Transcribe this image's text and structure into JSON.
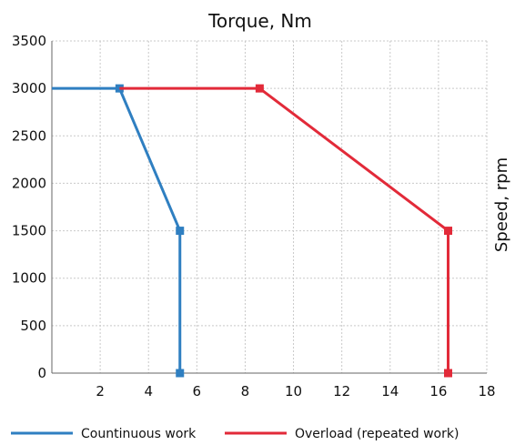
{
  "chart_data": {
    "type": "line",
    "title": "Torque, Nm",
    "xlabel": "",
    "ylabel": "Speed, rpm",
    "xlim": [
      0,
      18
    ],
    "ylim": [
      0,
      3500
    ],
    "x_ticks": [
      2,
      4,
      6,
      8,
      10,
      12,
      14,
      16,
      18
    ],
    "y_ticks": [
      0,
      500,
      1000,
      1500,
      2000,
      2500,
      3000,
      3500
    ],
    "grid": true,
    "legend_position": "bottom",
    "series": [
      {
        "name": "Countinuous work",
        "color": "#2f7fc1",
        "points": [
          {
            "x": 0,
            "y": 3000
          },
          {
            "x": 2.8,
            "y": 3000
          },
          {
            "x": 5.3,
            "y": 1500
          },
          {
            "x": 5.3,
            "y": 0
          }
        ],
        "markers": [
          1,
          2,
          3
        ]
      },
      {
        "name": "Overload (repeated work)",
        "color": "#e22a39",
        "points": [
          {
            "x": 2.8,
            "y": 3000
          },
          {
            "x": 8.6,
            "y": 3000
          },
          {
            "x": 16.4,
            "y": 1500
          },
          {
            "x": 16.4,
            "y": 0
          }
        ],
        "markers": [
          1,
          2,
          3
        ]
      }
    ]
  }
}
